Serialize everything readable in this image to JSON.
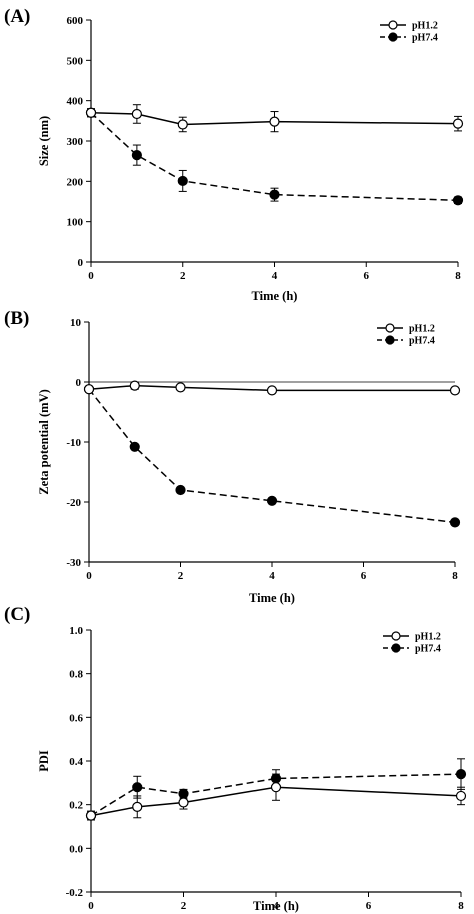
{
  "chart_data": [
    {
      "type": "line",
      "panel_label": "(A)",
      "xlabel": "Time (h)",
      "ylabel": "Size (nm)",
      "xlim": [
        0,
        8
      ],
      "ylim": [
        0,
        600
      ],
      "xticks": [
        0,
        2,
        4,
        6,
        8
      ],
      "yticks": [
        0,
        100,
        200,
        300,
        400,
        500,
        600
      ],
      "legend_position": "top-right",
      "x": [
        0,
        1,
        2,
        4,
        8
      ],
      "series": [
        {
          "name": "pH1.2",
          "marker": "open-circle",
          "line": "solid",
          "values": [
            370,
            367,
            341,
            348,
            343
          ],
          "errors": [
            10,
            23,
            18,
            25,
            18
          ]
        },
        {
          "name": "pH7.4",
          "marker": "filled-circle",
          "line": "dashed",
          "values": [
            370,
            265,
            201,
            167,
            153
          ],
          "errors": [
            10,
            25,
            26,
            16,
            8
          ]
        }
      ]
    },
    {
      "type": "line",
      "panel_label": "(B)",
      "xlabel": "Time (h)",
      "ylabel": "Zeta potential (mV)",
      "xlim": [
        0,
        8
      ],
      "ylim": [
        -30,
        10
      ],
      "xticks": [
        0,
        2,
        4,
        6,
        8
      ],
      "yticks": [
        -30,
        -20,
        -10,
        0,
        10
      ],
      "legend_position": "top-right",
      "x": [
        0,
        1,
        2,
        4,
        8
      ],
      "series": [
        {
          "name": "pH1.2",
          "marker": "open-circle",
          "line": "solid",
          "values": [
            -1.2,
            -0.6,
            -0.9,
            -1.4,
            -1.4
          ],
          "errors": [
            0.3,
            0.6,
            0.3,
            0.3,
            0.3
          ]
        },
        {
          "name": "pH7.4",
          "marker": "filled-circle",
          "line": "dashed",
          "values": [
            -1.2,
            -10.8,
            -18.0,
            -19.8,
            -23.4
          ],
          "errors": [
            0.3,
            0.4,
            0.3,
            0.3,
            0.3
          ]
        }
      ]
    },
    {
      "type": "line",
      "panel_label": "(C)",
      "xlabel": "Time (h)",
      "ylabel": "PDI",
      "xlim": [
        0,
        8
      ],
      "ylim": [
        -0.2,
        1.0
      ],
      "xticks": [
        0,
        2,
        4,
        6,
        8
      ],
      "yticks": [
        -0.2,
        0.0,
        0.2,
        0.4,
        0.6,
        0.8,
        1.0
      ],
      "ytick_labels": [
        "-0.2",
        "0.0",
        "0.2",
        "0.4",
        "0.6",
        "0.8",
        "1.0"
      ],
      "legend_position": "top-right",
      "x": [
        0,
        1,
        2,
        4,
        8
      ],
      "series": [
        {
          "name": "pH1.2",
          "marker": "open-circle",
          "line": "solid",
          "values": [
            0.15,
            0.19,
            0.21,
            0.28,
            0.24
          ],
          "errors": [
            0.02,
            0.05,
            0.03,
            0.06,
            0.04
          ]
        },
        {
          "name": "pH7.4",
          "marker": "filled-circle",
          "line": "dashed",
          "values": [
            0.15,
            0.28,
            0.25,
            0.32,
            0.34
          ],
          "errors": [
            0.02,
            0.05,
            0.02,
            0.04,
            0.07
          ]
        }
      ]
    }
  ]
}
